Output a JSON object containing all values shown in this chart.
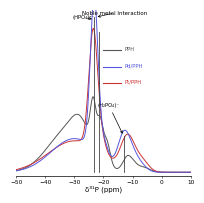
{
  "title": "Noble metal Interaction",
  "xlabel": "δ³¹P (ppm)",
  "xlim": [
    -50,
    10
  ],
  "ylim": [
    -0.03,
    1.45
  ],
  "legend": [
    "PPH",
    "Pd/PPH",
    "Pt/PPH"
  ],
  "legend_colors": [
    "#555555",
    "#5555dd",
    "#cc3333"
  ],
  "annotation_hpo4": "(HPO₄)²⁻",
  "annotation_h2po4": "(H₂PO₄)⁻",
  "background_color": "#ffffff"
}
